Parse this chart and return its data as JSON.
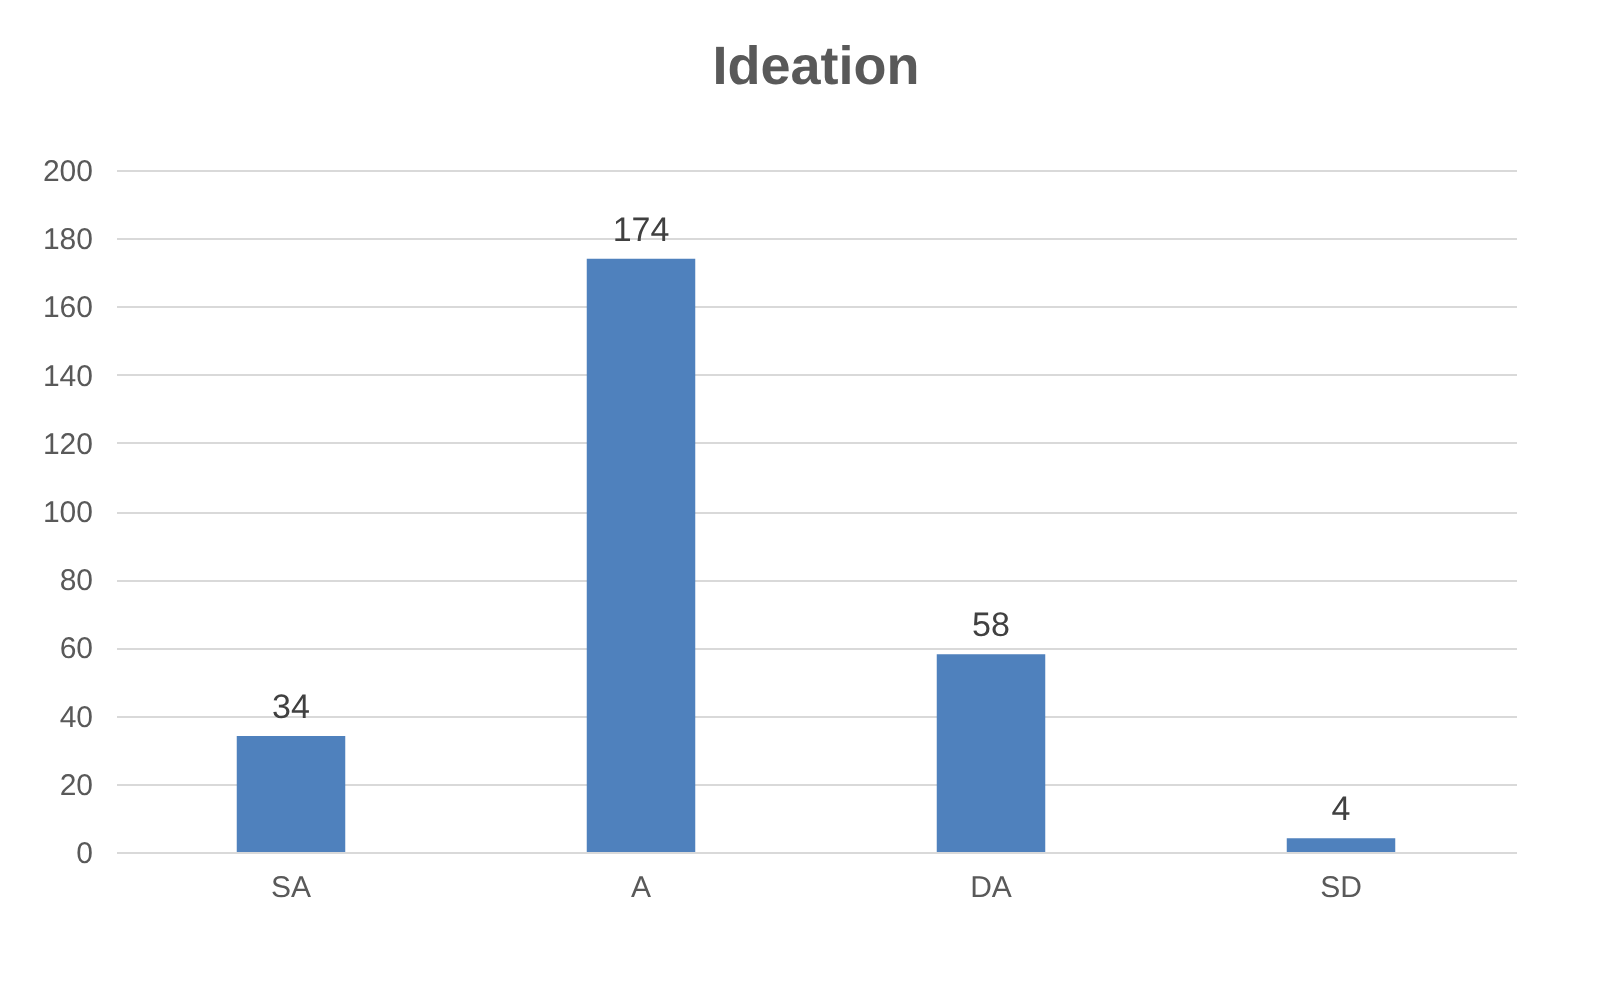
{
  "chart_data": {
    "type": "bar",
    "title": "Ideation",
    "categories": [
      "SA",
      "A",
      "DA",
      "SD"
    ],
    "values": [
      34,
      174,
      58,
      4
    ],
    "color": "#4f81bd",
    "ylim": [
      0,
      200
    ],
    "yticks": [
      0,
      20,
      40,
      60,
      80,
      100,
      120,
      140,
      160,
      180,
      200
    ],
    "grid": "y",
    "data_labels": true
  }
}
